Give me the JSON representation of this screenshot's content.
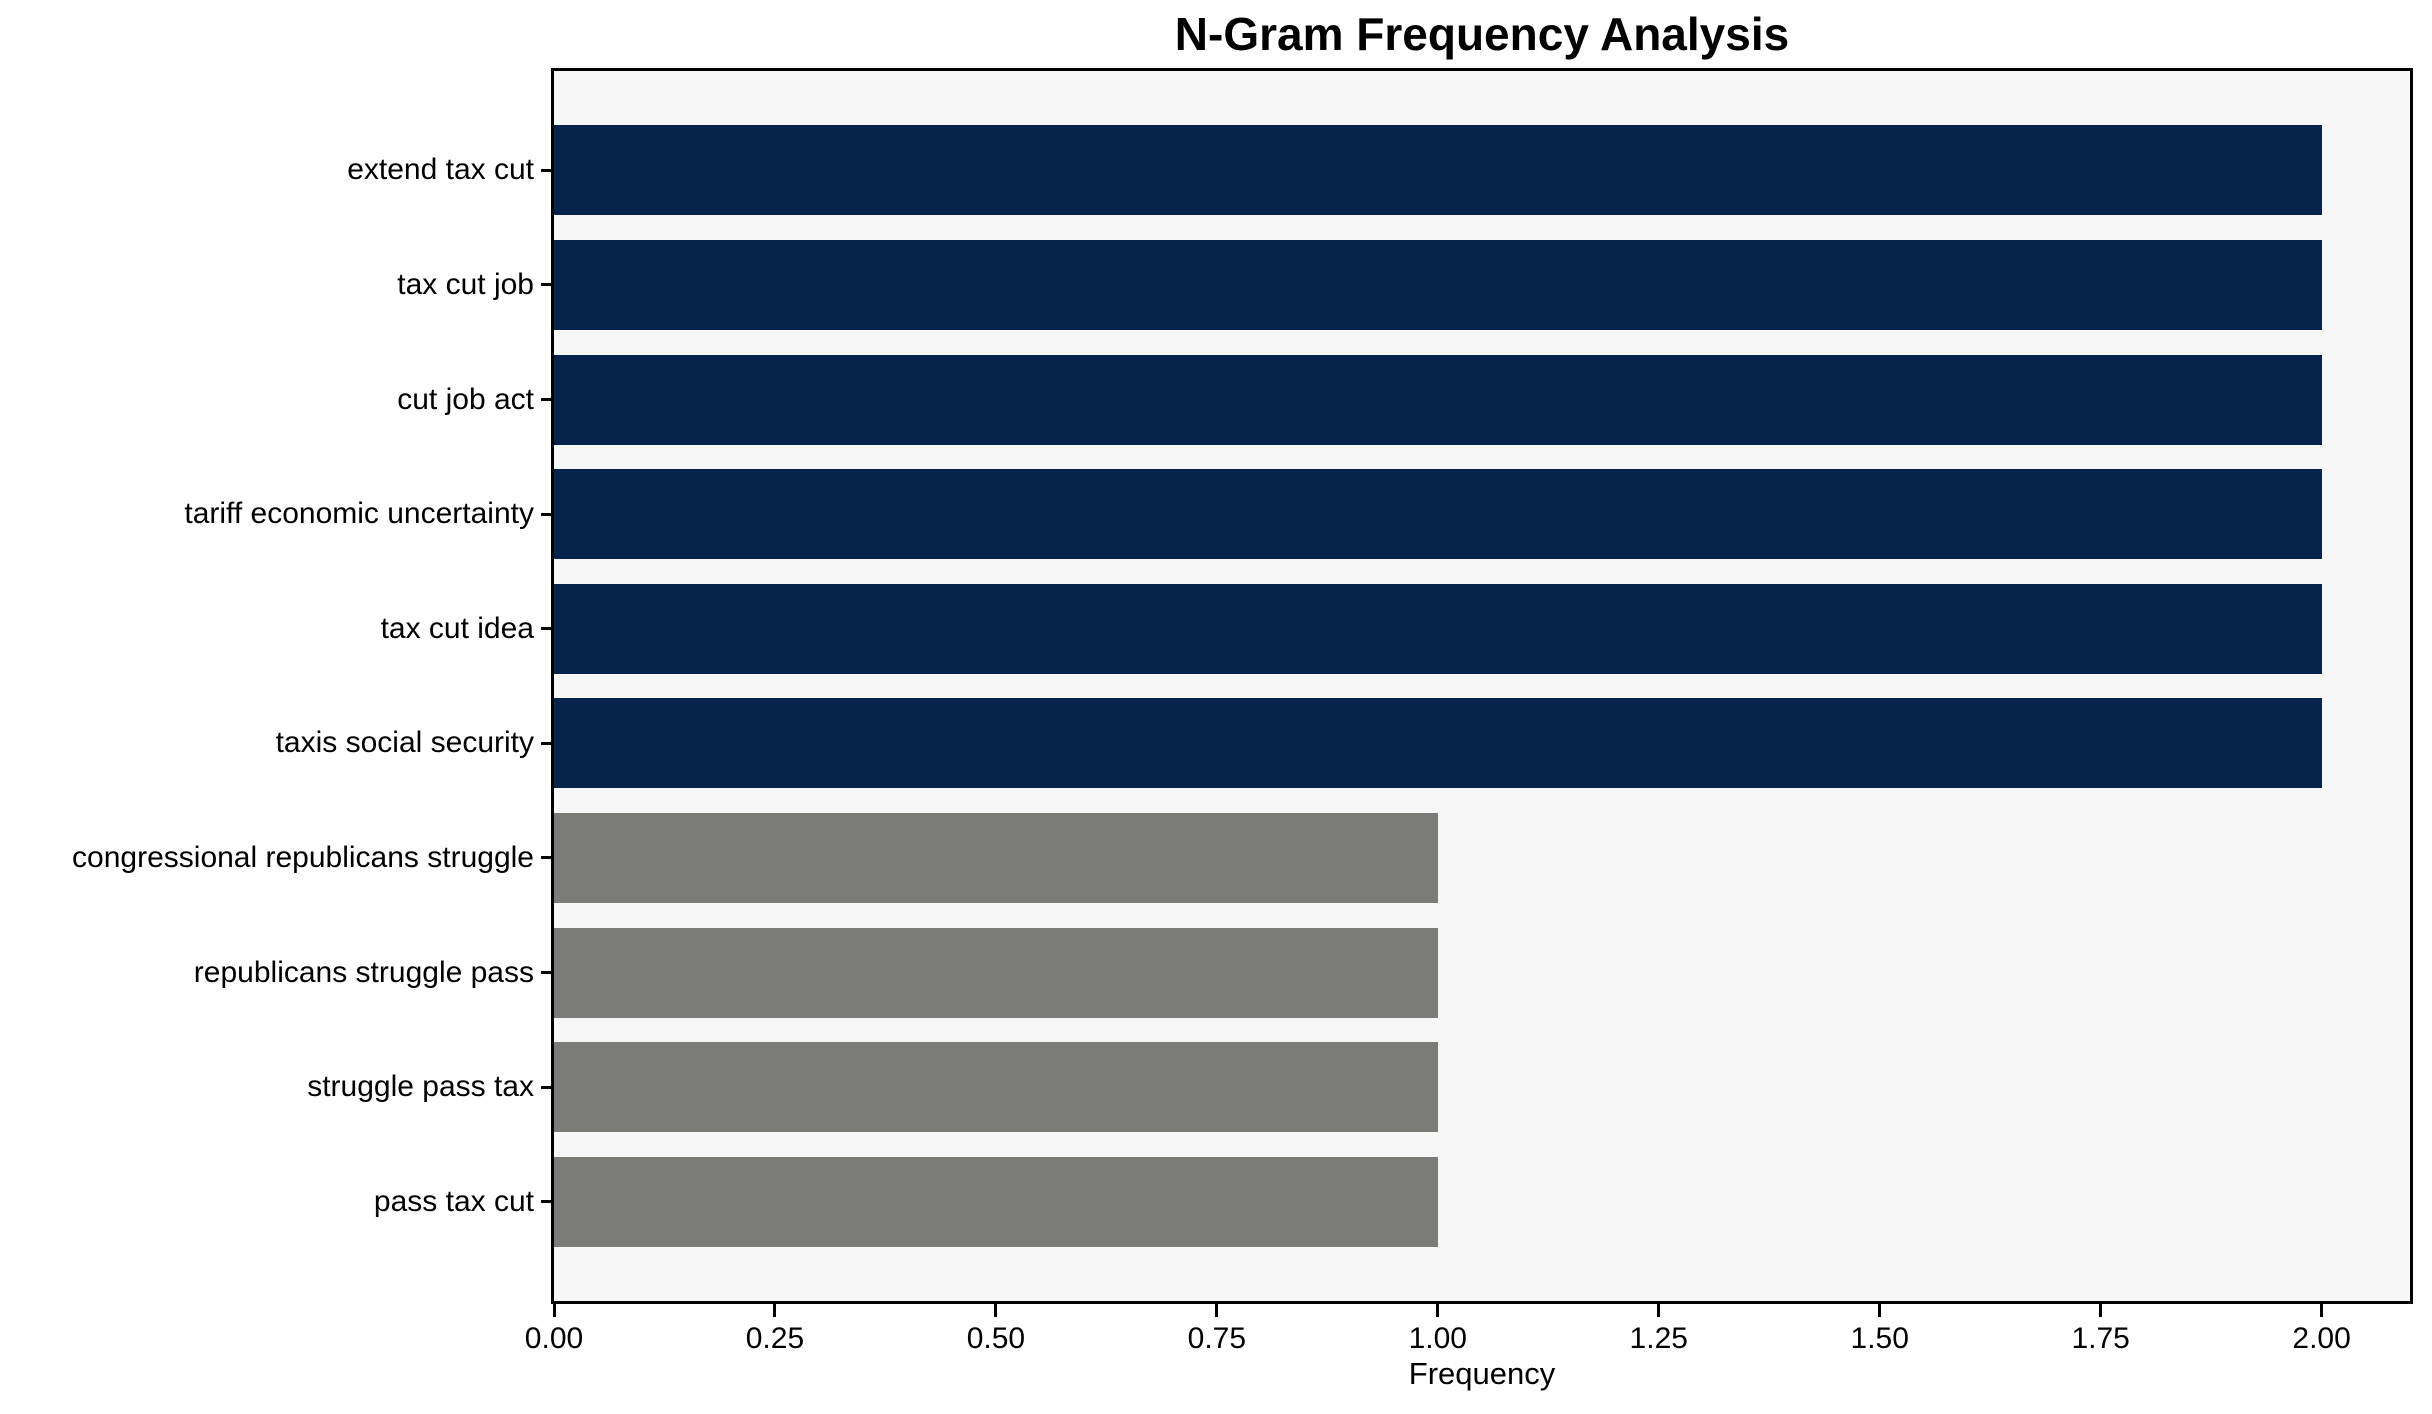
{
  "chart_data": {
    "type": "bar",
    "orientation": "horizontal",
    "title": "N-Gram Frequency Analysis",
    "xlabel": "Frequency",
    "ylabel": "",
    "categories": [
      "extend tax cut",
      "tax cut job",
      "cut job act",
      "tariff economic uncertainty",
      "tax cut idea",
      "taxis social security",
      "congressional republicans struggle",
      "republicans struggle pass",
      "struggle pass tax",
      "pass tax cut"
    ],
    "values": [
      2,
      2,
      2,
      2,
      2,
      2,
      1,
      1,
      1,
      1
    ],
    "bar_colors": [
      "#06234c",
      "#06234c",
      "#06234c",
      "#06234c",
      "#06234c",
      "#06234c",
      "#7b7b78",
      "#7b7b78",
      "#7b7b78",
      "#7b7b78"
    ],
    "xlim": [
      0,
      2.1
    ],
    "x_ticks": [
      {
        "label": "0.00",
        "value": 0.0
      },
      {
        "label": "0.25",
        "value": 0.25
      },
      {
        "label": "0.50",
        "value": 0.5
      },
      {
        "label": "0.75",
        "value": 0.75
      },
      {
        "label": "1.00",
        "value": 1.0
      },
      {
        "label": "1.25",
        "value": 1.25
      },
      {
        "label": "1.50",
        "value": 1.5
      },
      {
        "label": "1.75",
        "value": 1.75
      },
      {
        "label": "2.00",
        "value": 2.0
      }
    ],
    "grid": false,
    "legend": null,
    "colors": {
      "high_frequency_bar": "#06234c",
      "low_frequency_bar": "#7b7b78",
      "plot_background": "#f7f7f7",
      "figure_background": "#ffffff",
      "spine": "#000000",
      "text": "#000000"
    }
  }
}
